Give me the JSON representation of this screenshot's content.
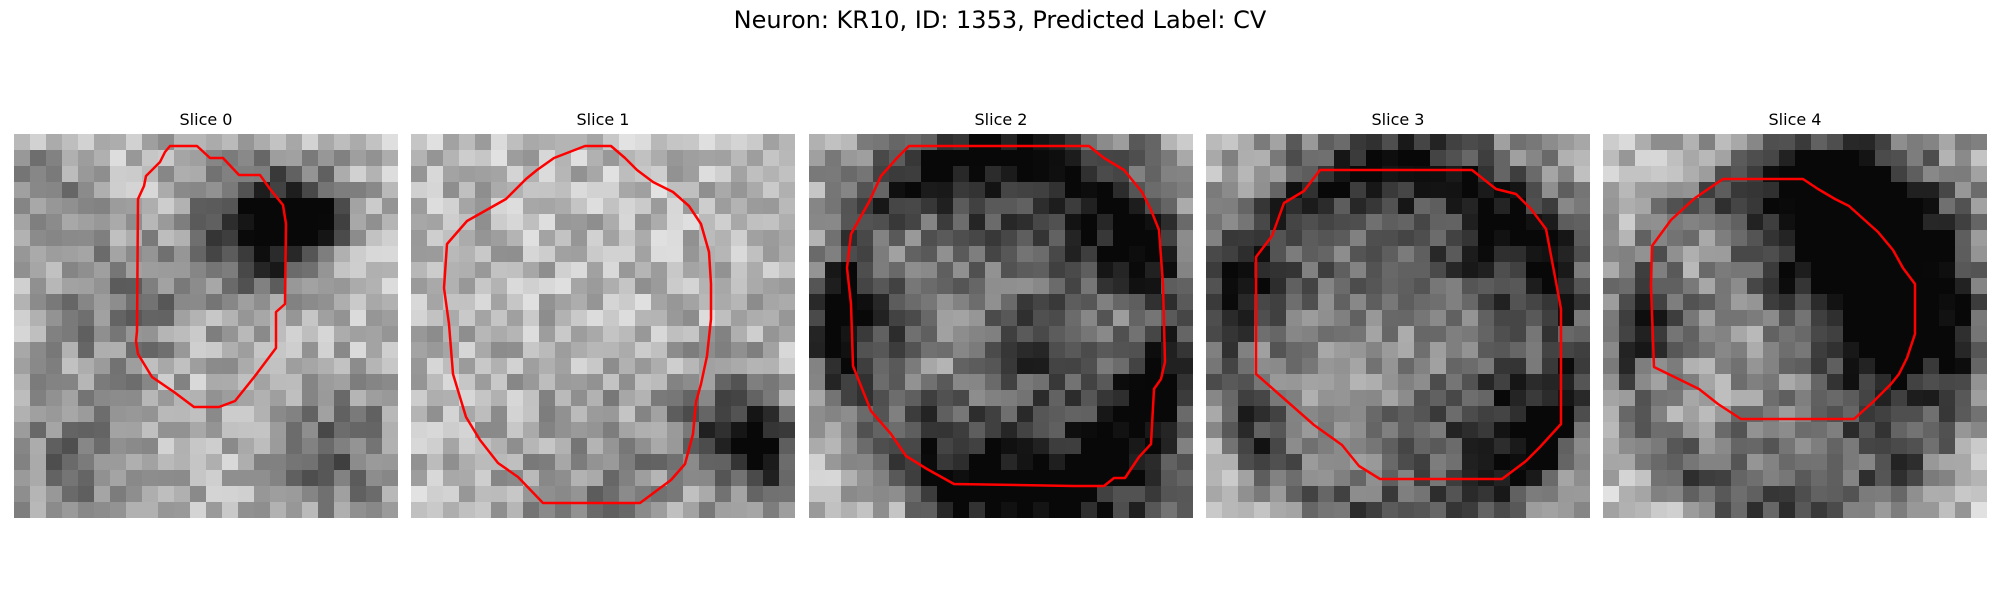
{
  "figure": {
    "title": "Neuron: KR10, ID: 1353, Predicted Label: CV"
  },
  "contour_color": "#ff0000",
  "colormap": "gray",
  "panels": [
    {
      "title": "Slice 0"
    },
    {
      "title": "Slice 1"
    },
    {
      "title": "Slice 2"
    },
    {
      "title": "Slice 3"
    },
    {
      "title": "Slice 4"
    }
  ]
}
